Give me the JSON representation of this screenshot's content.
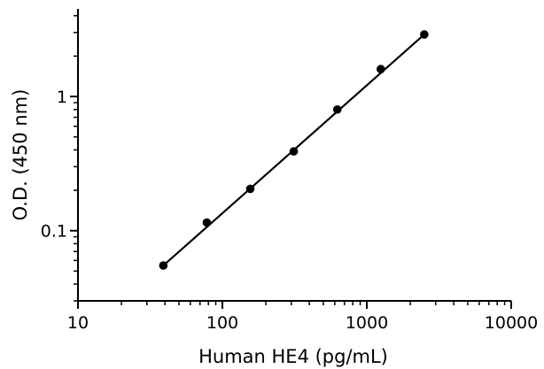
{
  "chart_data": {
    "type": "scatter",
    "title": "",
    "xlabel": "Human HE4 (pg/mL)",
    "ylabel": "O.D. (450 nm)",
    "xscale": "log",
    "yscale": "log",
    "xlim": [
      10,
      10000
    ],
    "ylim": [
      0.03,
      4.5
    ],
    "x_ticks": [
      10,
      100,
      1000,
      10000
    ],
    "x_tick_labels": [
      "10",
      "100",
      "1000",
      "10000"
    ],
    "y_ticks": [
      0.1,
      1
    ],
    "y_tick_labels": [
      "0.1",
      "1"
    ],
    "grid": false,
    "series": [
      {
        "x": [
          39,
          78,
          156,
          312,
          625,
          1250,
          2500
        ],
        "y": [
          0.055,
          0.115,
          0.205,
          0.39,
          0.8,
          1.6,
          2.9
        ]
      }
    ],
    "fit_line": {
      "x": [
        39,
        2500
      ],
      "y": [
        0.055,
        2.9
      ]
    }
  }
}
